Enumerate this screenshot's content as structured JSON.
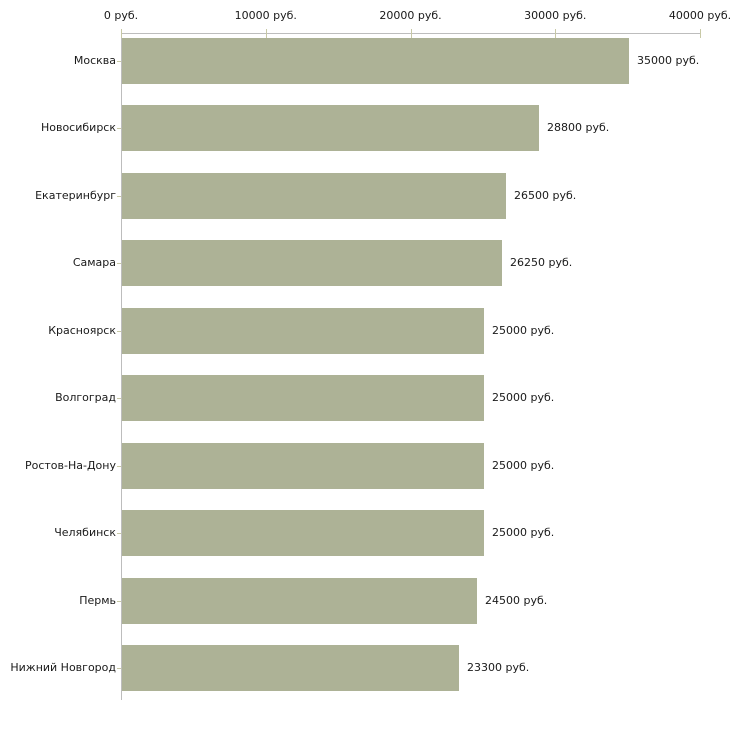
{
  "chart_data": {
    "type": "bar",
    "orientation": "horizontal",
    "title": "",
    "categories": [
      "Москва",
      "Новосибирск",
      "Екатеринбург",
      "Самара",
      "Красноярск",
      "Волгоград",
      "Ростов-На-Дону",
      "Челябинск",
      "Пермь",
      "Нижний Новгород"
    ],
    "values": [
      35000,
      28800,
      26500,
      26250,
      25000,
      25000,
      25000,
      25000,
      24500,
      23300
    ],
    "value_labels": [
      "35000 руб.",
      "28800 руб.",
      "26500 руб.",
      "26250 руб.",
      "25000 руб.",
      "25000 руб.",
      "25000 руб.",
      "25000 руб.",
      "24500 руб.",
      "23300 руб."
    ],
    "x_axis": {
      "position": "top",
      "min": 0,
      "max": 40000,
      "ticks": [
        0,
        10000,
        20000,
        30000,
        40000
      ],
      "tick_labels": [
        "0 руб.",
        "10000 руб.",
        "20000 руб.",
        "30000 руб.",
        "40000 руб."
      ]
    },
    "ylabel": "",
    "xlabel": "",
    "legend": "none",
    "grid": "off",
    "colors": {
      "bar": "#adb296",
      "axis_line": "#bdbdbd",
      "tick_mark": "#c8c9a6",
      "text": "#1a1a1a",
      "background": "#ffffff"
    }
  }
}
